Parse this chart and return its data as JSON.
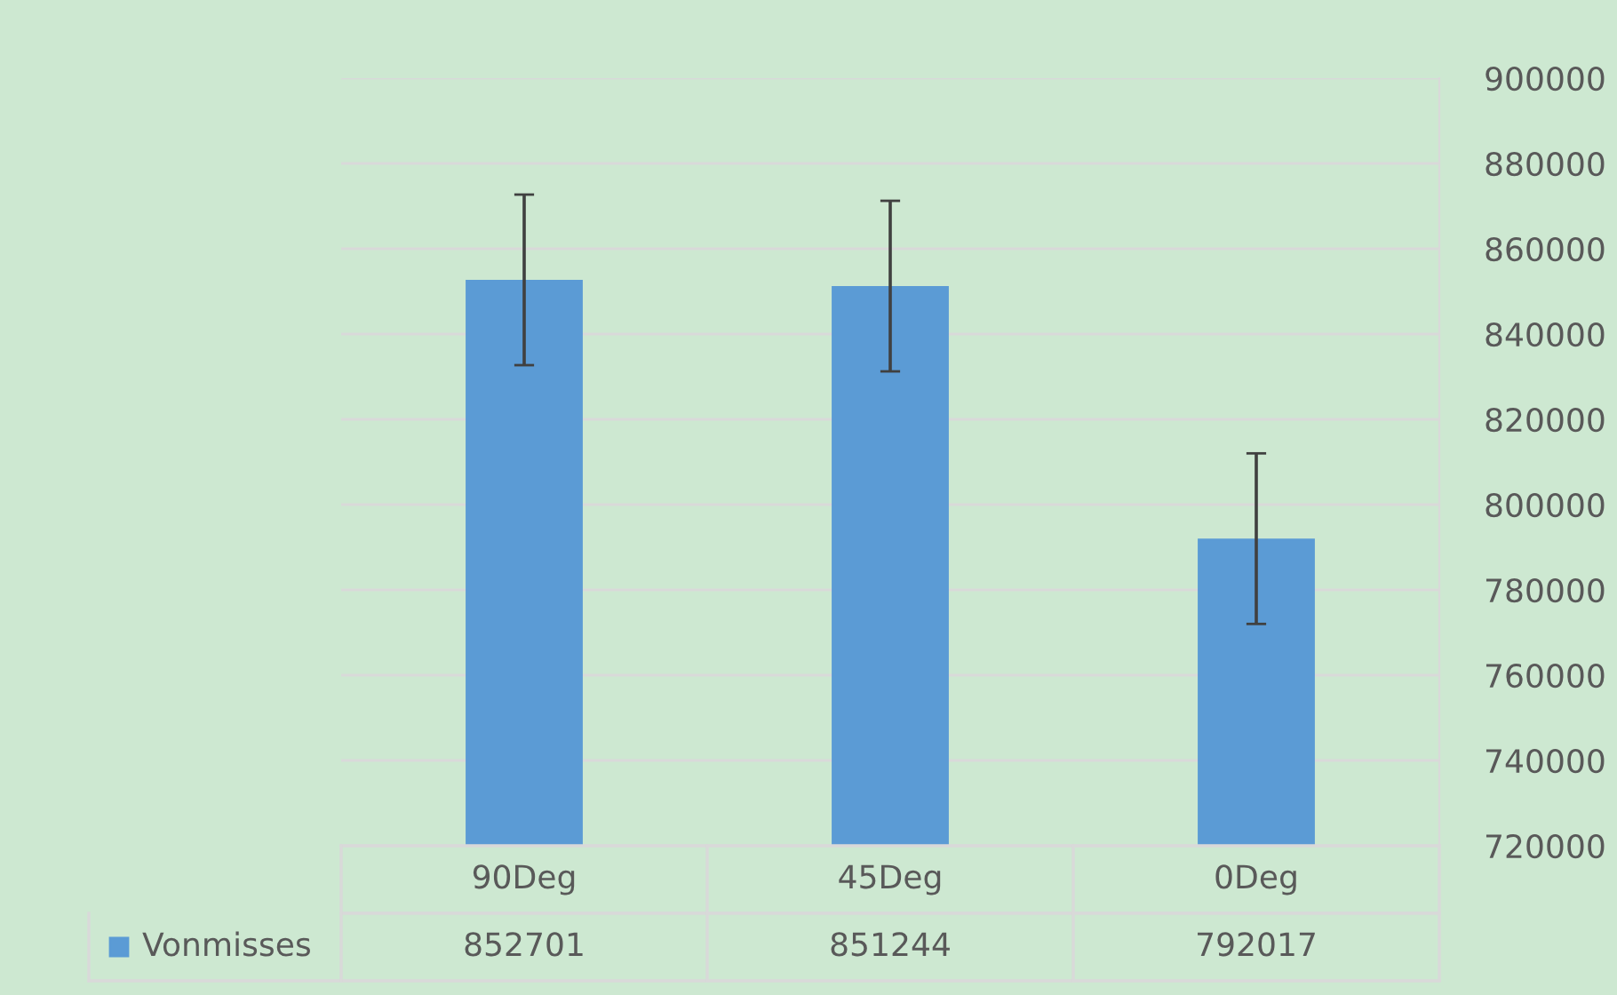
{
  "chart_data": {
    "type": "bar",
    "categories": [
      "90Deg",
      "45Deg",
      "0Deg"
    ],
    "series": [
      {
        "name": "Vonmisses",
        "color": "#5b9bd5",
        "values": [
          852701,
          851244,
          792017
        ],
        "errors": [
          20000,
          20000,
          20000
        ]
      }
    ],
    "ylim": [
      720000,
      900000
    ],
    "yticks": [
      720000,
      740000,
      760000,
      780000,
      800000,
      820000,
      840000,
      860000,
      880000,
      900000
    ],
    "grid": "y",
    "data_labels": true,
    "legend": "bottom left"
  }
}
